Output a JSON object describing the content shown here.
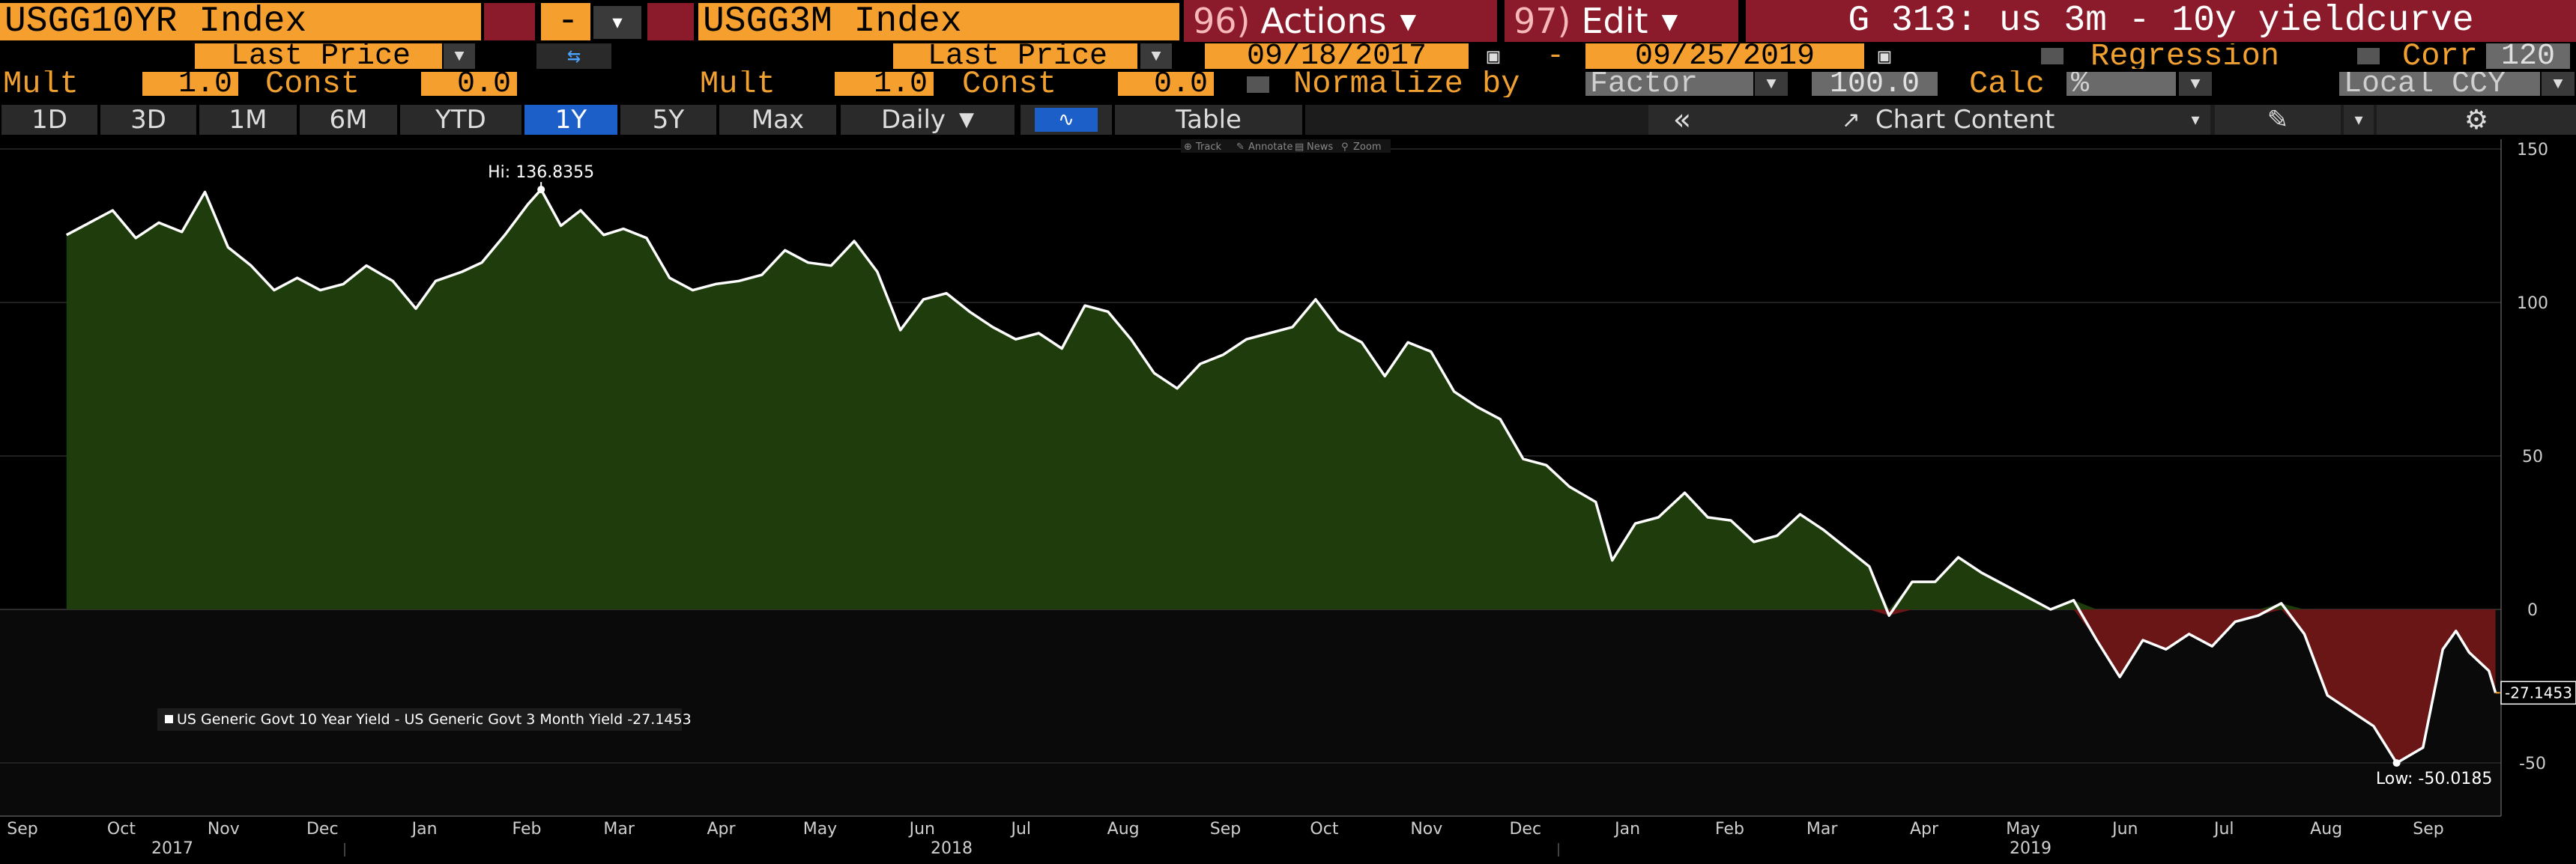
{
  "header": {
    "security1": "USGG10YR Index",
    "op_symbol": "-",
    "security2": "USGG3M Index",
    "actions_num": "96)",
    "actions_label": "Actions",
    "edit_num": "97)",
    "edit_label": "Edit",
    "title": "G 313: us 3m - 10y yieldcurve"
  },
  "row2": {
    "field1": "Last Price",
    "swap_icon": "swap-arrows-icon",
    "field2": "Last Price",
    "start_date": "09/18/2017",
    "date_sep": "-",
    "end_date": "09/25/2019",
    "regression_label": "Regression",
    "corr_label": "Corr",
    "corr_value": "120"
  },
  "row3": {
    "mult1_label": "Mult",
    "mult1_value": "1.0",
    "const1_label": "Const",
    "const1_value": "0.0",
    "mult2_label": "Mult",
    "mult2_value": "1.0",
    "const2_label": "Const",
    "const2_value": "0.0",
    "normalize_label": "Normalize by",
    "normalize_value": "Factor",
    "normalize_amount": "100.0",
    "calc_label": "Calc",
    "calc_value": "%",
    "currency": "Local CCY"
  },
  "toolbar": {
    "periods": [
      "1D",
      "3D",
      "1M",
      "6M",
      "YTD",
      "1Y",
      "5Y",
      "Max"
    ],
    "active_period": "1Y",
    "frequency": "Daily",
    "table_label": "Table",
    "collapse_icon": "double-chevron-left-icon",
    "chart_content_label": "Chart Content",
    "pen_icon": "pen-icon",
    "settings_icon": "gear-icon"
  },
  "chart_tools": [
    "Track",
    "Annotate",
    "News",
    "Zoom"
  ],
  "colors": {
    "accent_orange": "#f5a02e",
    "maroon": "#8b1a2a",
    "positive_fill": "#1f3d0c",
    "negative_fill": "#6a1616",
    "line": "#ffffff",
    "active_tab": "#1d5fc8"
  },
  "chart_data": {
    "type": "area",
    "legend": "US Generic Govt 10 Year Yield - US Generic Govt 3 Month Yield -27.1453",
    "last_value_label": "-27.1453",
    "hi_label": "Hi: 136.8355",
    "low_label": "Low: -50.0185",
    "ylim": [
      -63,
      150
    ],
    "yticks": [
      150,
      100,
      50,
      0,
      -50
    ],
    "x_months": [
      "Sep",
      "Oct",
      "Nov",
      "Dec",
      "Jan",
      "Feb",
      "Mar",
      "Apr",
      "May",
      "Jun",
      "Jul",
      "Aug",
      "Sep",
      "Oct",
      "Nov",
      "Dec",
      "Jan",
      "Feb",
      "Mar",
      "Apr",
      "May",
      "Jun",
      "Jul",
      "Aug",
      "Sep"
    ],
    "x_years": [
      "2017",
      "2018",
      "2019"
    ],
    "start_date": "2017-09-18",
    "end_date": "2019-09-25",
    "series": [
      {
        "values": [
          [
            "2017-09-18",
            122
          ],
          [
            "2017-09-25",
            126
          ],
          [
            "2017-10-02",
            130
          ],
          [
            "2017-10-09",
            121
          ],
          [
            "2017-10-16",
            126
          ],
          [
            "2017-10-23",
            123
          ],
          [
            "2017-10-30",
            136
          ],
          [
            "2017-11-06",
            118
          ],
          [
            "2017-11-13",
            112
          ],
          [
            "2017-11-20",
            104
          ],
          [
            "2017-11-27",
            108
          ],
          [
            "2017-12-04",
            104
          ],
          [
            "2017-12-11",
            106
          ],
          [
            "2017-12-18",
            112
          ],
          [
            "2017-12-26",
            107
          ],
          [
            "2018-01-02",
            98
          ],
          [
            "2018-01-08",
            107
          ],
          [
            "2018-01-16",
            110
          ],
          [
            "2018-01-22",
            113
          ],
          [
            "2018-01-29",
            122
          ],
          [
            "2018-02-05",
            132
          ],
          [
            "2018-02-09",
            136.8
          ],
          [
            "2018-02-15",
            125
          ],
          [
            "2018-02-21",
            130
          ],
          [
            "2018-02-28",
            122
          ],
          [
            "2018-03-06",
            124
          ],
          [
            "2018-03-13",
            121
          ],
          [
            "2018-03-20",
            108
          ],
          [
            "2018-03-27",
            104
          ],
          [
            "2018-04-03",
            106
          ],
          [
            "2018-04-10",
            107
          ],
          [
            "2018-04-17",
            109
          ],
          [
            "2018-04-24",
            117
          ],
          [
            "2018-05-01",
            113
          ],
          [
            "2018-05-08",
            112
          ],
          [
            "2018-05-15",
            120
          ],
          [
            "2018-05-22",
            110
          ],
          [
            "2018-05-29",
            91
          ],
          [
            "2018-06-05",
            101
          ],
          [
            "2018-06-12",
            103
          ],
          [
            "2018-06-19",
            97
          ],
          [
            "2018-06-26",
            92
          ],
          [
            "2018-07-03",
            88
          ],
          [
            "2018-07-10",
            90
          ],
          [
            "2018-07-17",
            85
          ],
          [
            "2018-07-24",
            99
          ],
          [
            "2018-07-31",
            97
          ],
          [
            "2018-08-07",
            88
          ],
          [
            "2018-08-14",
            77
          ],
          [
            "2018-08-21",
            72
          ],
          [
            "2018-08-28",
            80
          ],
          [
            "2018-09-04",
            83
          ],
          [
            "2018-09-11",
            88
          ],
          [
            "2018-09-18",
            90
          ],
          [
            "2018-09-25",
            92
          ],
          [
            "2018-10-02",
            101
          ],
          [
            "2018-10-09",
            91
          ],
          [
            "2018-10-16",
            87
          ],
          [
            "2018-10-23",
            76
          ],
          [
            "2018-10-30",
            87
          ],
          [
            "2018-11-06",
            84
          ],
          [
            "2018-11-13",
            71
          ],
          [
            "2018-11-20",
            66
          ],
          [
            "2018-11-27",
            62
          ],
          [
            "2018-12-04",
            49
          ],
          [
            "2018-12-11",
            47
          ],
          [
            "2018-12-18",
            40
          ],
          [
            "2018-12-26",
            35
          ],
          [
            "2018-12-31",
            16
          ],
          [
            "2019-01-07",
            28
          ],
          [
            "2019-01-14",
            30
          ],
          [
            "2019-01-22",
            38
          ],
          [
            "2019-01-29",
            30
          ],
          [
            "2019-02-05",
            29
          ],
          [
            "2019-02-12",
            22
          ],
          [
            "2019-02-19",
            24
          ],
          [
            "2019-02-26",
            31
          ],
          [
            "2019-03-05",
            26
          ],
          [
            "2019-03-12",
            20
          ],
          [
            "2019-03-19",
            14
          ],
          [
            "2019-03-25",
            -2
          ],
          [
            "2019-04-01",
            9
          ],
          [
            "2019-04-08",
            9
          ],
          [
            "2019-04-15",
            17
          ],
          [
            "2019-04-22",
            12
          ],
          [
            "2019-04-29",
            8
          ],
          [
            "2019-05-06",
            4
          ],
          [
            "2019-05-13",
            0
          ],
          [
            "2019-05-20",
            3
          ],
          [
            "2019-05-27",
            -10
          ],
          [
            "2019-06-03",
            -22
          ],
          [
            "2019-06-10",
            -10
          ],
          [
            "2019-06-17",
            -13
          ],
          [
            "2019-06-24",
            -8
          ],
          [
            "2019-07-01",
            -12
          ],
          [
            "2019-07-08",
            -4
          ],
          [
            "2019-07-15",
            -2
          ],
          [
            "2019-07-22",
            2
          ],
          [
            "2019-07-29",
            -8
          ],
          [
            "2019-08-05",
            -28
          ],
          [
            "2019-08-12",
            -33
          ],
          [
            "2019-08-19",
            -38
          ],
          [
            "2019-08-26",
            -50.02
          ],
          [
            "2019-09-03",
            -45
          ],
          [
            "2019-09-09",
            -13
          ],
          [
            "2019-09-13",
            -7
          ],
          [
            "2019-09-17",
            -14
          ],
          [
            "2019-09-23",
            -20
          ],
          [
            "2019-09-25",
            -27.15
          ]
        ]
      }
    ]
  }
}
